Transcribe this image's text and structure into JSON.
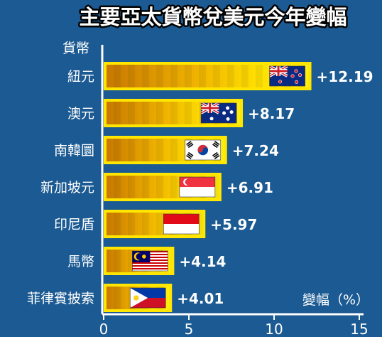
{
  "chart_data": {
    "type": "bar",
    "orientation": "horizontal",
    "title": "主要亞太貨幣兌美元今年變幅",
    "ylabel": "貨幣",
    "xlabel": "變幅（%）",
    "categories": [
      "紐元",
      "澳元",
      "南韓圜",
      "新加坡元",
      "印尼盾",
      "馬幣",
      "菲律賓披索"
    ],
    "values": [
      12.19,
      8.17,
      7.24,
      6.91,
      5.97,
      4.14,
      4.01
    ],
    "value_labels": [
      "+12.19",
      "+8.17",
      "+7.24",
      "+6.91",
      "+5.97",
      "+4.14",
      "+4.01"
    ],
    "flags": [
      "new-zealand-flag-icon",
      "australia-flag-icon",
      "south-korea-flag-icon",
      "singapore-flag-icon",
      "indonesia-flag-icon",
      "malaysia-flag-icon",
      "philippines-flag-icon"
    ],
    "xlim": [
      0,
      15
    ],
    "xticks": [
      "0",
      "5",
      "10",
      "15"
    ],
    "grid": false,
    "colors": {
      "background": "#1b5a92",
      "bar_frame": "#ffe600",
      "bar_fill_start": "#c87800",
      "bar_fill_end": "#ffe600",
      "text": "#ffffff"
    }
  }
}
